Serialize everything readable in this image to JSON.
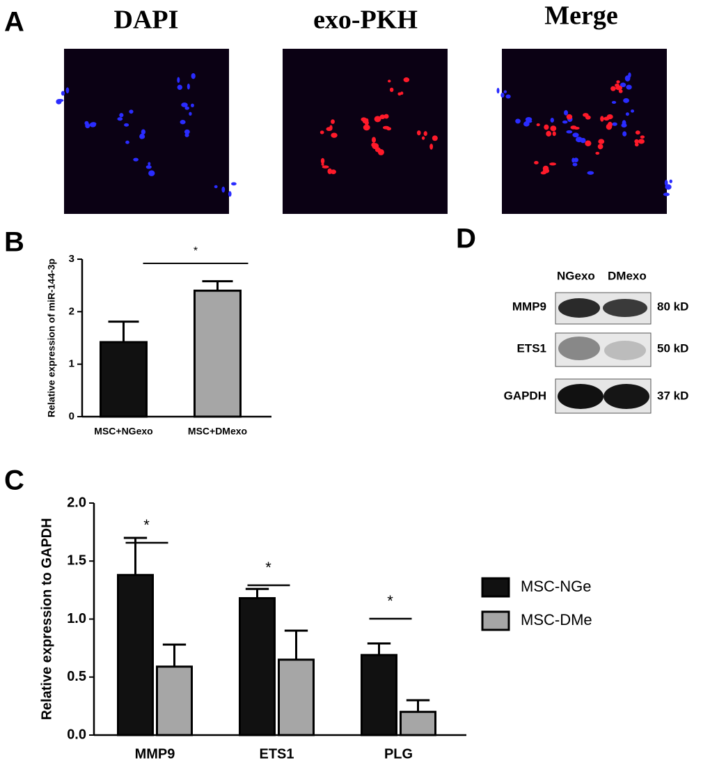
{
  "panel_labels": [
    "A",
    "B",
    "C",
    "D"
  ],
  "panel_a": {
    "titles": [
      "DAPI",
      "exo-PKH",
      "Merge"
    ]
  },
  "chart_data": [
    {
      "type": "bar",
      "y_label": "Relative expression of miR-144-3p",
      "categories": [
        "MSC+NGexo",
        "MSC+DMexo"
      ],
      "values": [
        1.42,
        2.4
      ],
      "errors": [
        0.39,
        0.18
      ],
      "colors": [
        "#111111",
        "#a6a6a6"
      ],
      "ylim": [
        0,
        3
      ],
      "yticks": [
        0,
        1,
        2,
        3
      ],
      "annotations": [
        "*"
      ]
    },
    {
      "type": "bar",
      "y_label": "Relative expression to GAPDH",
      "categories": [
        "MMP9",
        "ETS1",
        "PLG"
      ],
      "series": [
        {
          "name": "MSC-NGe",
          "color": "#111111",
          "values": [
            1.38,
            1.18,
            0.69
          ],
          "errors": [
            0.32,
            0.08,
            0.1
          ]
        },
        {
          "name": "MSC-DMe",
          "color": "#a6a6a6",
          "values": [
            0.59,
            0.65,
            0.2
          ],
          "errors": [
            0.19,
            0.25,
            0.1
          ]
        }
      ],
      "ylim": [
        0,
        2
      ],
      "yticks": [
        {
          "value": 0,
          "label": "0.0"
        },
        {
          "value": 0.5,
          "label": "0.5"
        },
        {
          "value": 1,
          "label": "1.0"
        },
        {
          "value": 1.5,
          "label": "1.5"
        },
        {
          "value": 2,
          "label": "2.0"
        }
      ],
      "annotations": [
        "*",
        "*",
        "*"
      ]
    }
  ],
  "panel_d": {
    "columns": [
      "NGexo",
      "DMexo"
    ],
    "rows": [
      "MMP9",
      "ETS1",
      "GAPDH"
    ],
    "sizes": [
      "80 kD",
      "50 kD",
      "37 kD"
    ]
  }
}
